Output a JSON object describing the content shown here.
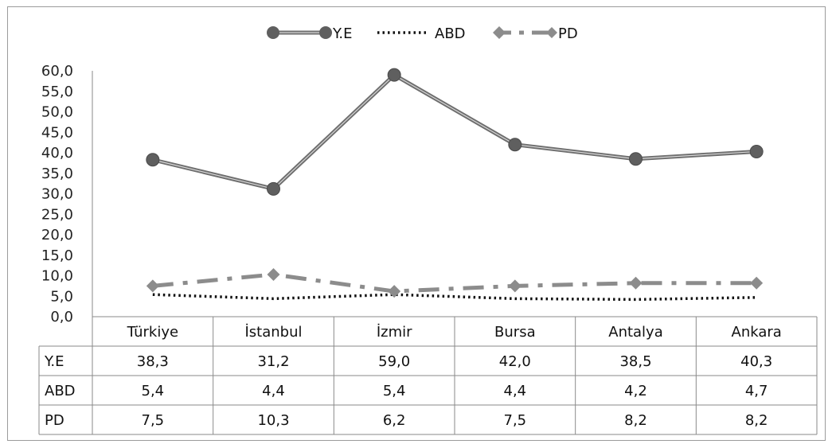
{
  "chart_data": {
    "type": "line",
    "categories": [
      "Türkiye",
      "İstanbul",
      "İzmir",
      "Bursa",
      "Antalya",
      "Ankara"
    ],
    "series": [
      {
        "name": "Y.E",
        "values": [
          38.3,
          31.2,
          59.0,
          42.0,
          38.5,
          40.3
        ],
        "color": "#6e6e6e",
        "style": "solid-double",
        "marker": "circle"
      },
      {
        "name": "ABD",
        "values": [
          5.4,
          4.4,
          5.4,
          4.4,
          4.2,
          4.7
        ],
        "color": "#111111",
        "style": "dotted",
        "marker": "none"
      },
      {
        "name": "PD",
        "values": [
          7.5,
          10.3,
          6.2,
          7.5,
          8.2,
          8.2
        ],
        "color": "#8c8c8c",
        "style": "dash-dot",
        "marker": "diamond"
      }
    ],
    "y_tick_labels": [
      "0,0",
      "5,0",
      "10,0",
      "15,0",
      "20,0",
      "25,0",
      "30,0",
      "35,0",
      "40,0",
      "45,0",
      "50,0",
      "55,0",
      "60,0"
    ],
    "table_values": [
      [
        "38,3",
        "31,2",
        "59,0",
        "42,0",
        "38,5",
        "40,3"
      ],
      [
        "5,4",
        "4,4",
        "5,4",
        "4,4",
        "4,2",
        "4,7"
      ],
      [
        "7,5",
        "10,3",
        "6,2",
        "7,5",
        "8,2",
        "8,2"
      ]
    ],
    "ylim": [
      0,
      60
    ],
    "legend_position": "top",
    "data_table": true,
    "grid": false
  }
}
